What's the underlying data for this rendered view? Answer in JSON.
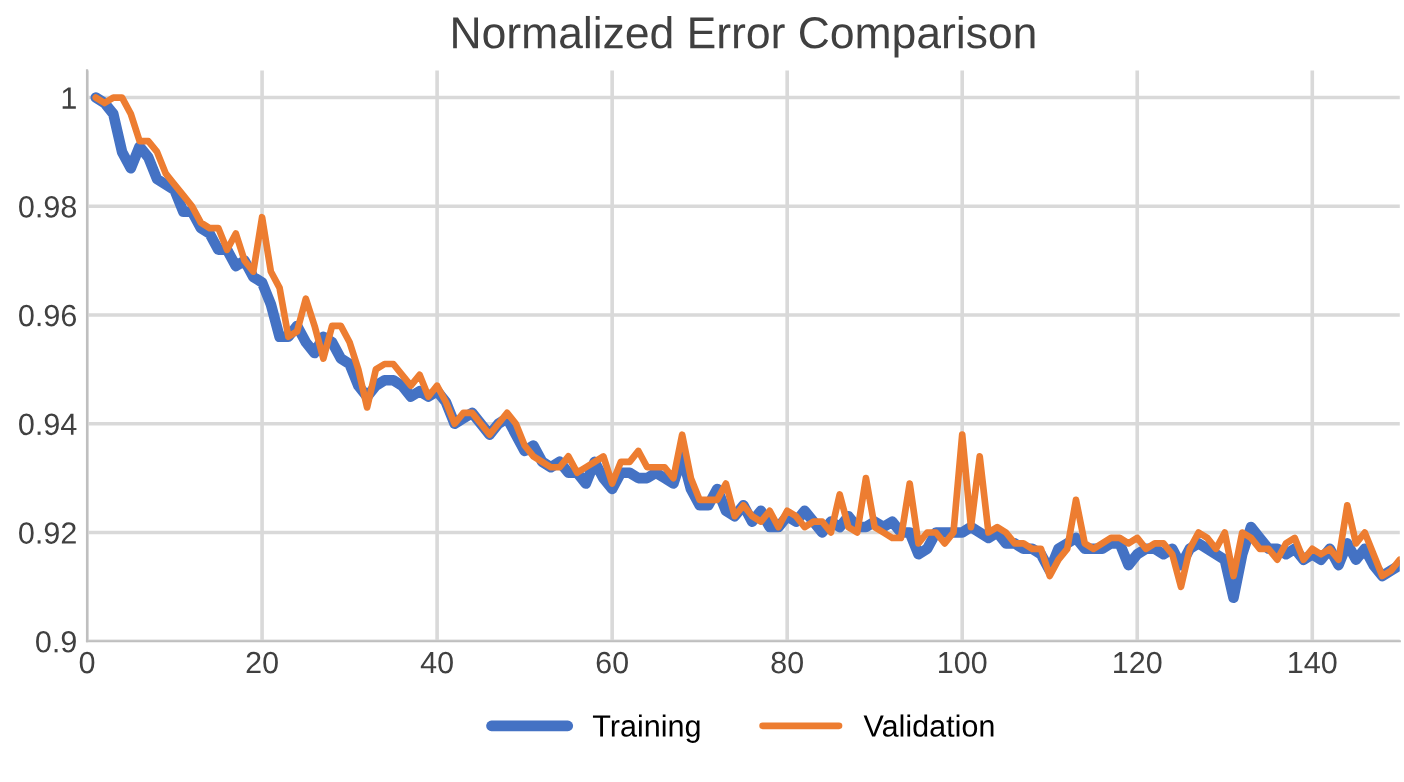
{
  "chart_data": {
    "type": "line",
    "title": "Normalized Error Comparison",
    "x": [
      1,
      2,
      3,
      4,
      5,
      6,
      7,
      8,
      9,
      10,
      11,
      12,
      13,
      14,
      15,
      16,
      17,
      18,
      19,
      20,
      21,
      22,
      23,
      24,
      25,
      26,
      27,
      28,
      29,
      30,
      31,
      32,
      33,
      34,
      35,
      36,
      37,
      38,
      39,
      40,
      41,
      42,
      43,
      44,
      45,
      46,
      47,
      48,
      49,
      50,
      51,
      52,
      53,
      54,
      55,
      56,
      57,
      58,
      59,
      60,
      61,
      62,
      63,
      64,
      65,
      66,
      67,
      68,
      69,
      70,
      71,
      72,
      73,
      74,
      75,
      76,
      77,
      78,
      79,
      80,
      81,
      82,
      83,
      84,
      85,
      86,
      87,
      88,
      89,
      90,
      91,
      92,
      93,
      94,
      95,
      96,
      97,
      98,
      99,
      100,
      101,
      102,
      103,
      104,
      105,
      106,
      107,
      108,
      109,
      110,
      111,
      112,
      113,
      114,
      115,
      116,
      117,
      118,
      119,
      120,
      121,
      122,
      123,
      124,
      125,
      126,
      127,
      128,
      129,
      130,
      131,
      132,
      133,
      134,
      135,
      136,
      137,
      138,
      139,
      140,
      141,
      142,
      143,
      144,
      145,
      146,
      147,
      148,
      149,
      150
    ],
    "series": [
      {
        "name": "Training",
        "color": "#4472c4",
        "values": [
          1.0,
          0.999,
          0.997,
          0.99,
          0.987,
          0.991,
          0.989,
          0.985,
          0.984,
          0.983,
          0.979,
          0.979,
          0.976,
          0.975,
          0.972,
          0.972,
          0.969,
          0.97,
          0.967,
          0.966,
          0.962,
          0.956,
          0.956,
          0.958,
          0.955,
          0.953,
          0.956,
          0.955,
          0.952,
          0.951,
          0.947,
          0.945,
          0.947,
          0.948,
          0.948,
          0.947,
          0.945,
          0.946,
          0.945,
          0.946,
          0.944,
          0.94,
          0.941,
          0.942,
          0.94,
          0.938,
          0.94,
          0.941,
          0.938,
          0.935,
          0.936,
          0.933,
          0.932,
          0.933,
          0.931,
          0.931,
          0.929,
          0.933,
          0.93,
          0.928,
          0.931,
          0.931,
          0.93,
          0.93,
          0.931,
          0.93,
          0.929,
          0.934,
          0.928,
          0.925,
          0.925,
          0.928,
          0.924,
          0.923,
          0.925,
          0.922,
          0.924,
          0.921,
          0.921,
          0.923,
          0.922,
          0.924,
          0.922,
          0.92,
          0.922,
          0.921,
          0.923,
          0.921,
          0.921,
          0.922,
          0.921,
          0.922,
          0.92,
          0.92,
          0.916,
          0.917,
          0.92,
          0.92,
          0.92,
          0.92,
          0.921,
          0.92,
          0.919,
          0.92,
          0.918,
          0.918,
          0.917,
          0.917,
          0.916,
          0.913,
          0.917,
          0.918,
          0.919,
          0.917,
          0.917,
          0.917,
          0.918,
          0.918,
          0.914,
          0.916,
          0.917,
          0.917,
          0.916,
          0.917,
          0.914,
          0.917,
          0.918,
          0.917,
          0.916,
          0.915,
          0.908,
          0.916,
          0.921,
          0.919,
          0.917,
          0.917,
          0.916,
          0.917,
          0.915,
          0.916,
          0.915,
          0.917,
          0.914,
          0.918,
          0.915,
          0.917,
          0.914,
          0.912,
          0.913,
          0.914
        ]
      },
      {
        "name": "Validation",
        "color": "#ed7d31",
        "values": [
          1.0,
          0.999,
          1.0,
          1.0,
          0.997,
          0.992,
          0.992,
          0.99,
          0.986,
          0.984,
          0.982,
          0.98,
          0.977,
          0.976,
          0.976,
          0.972,
          0.975,
          0.97,
          0.968,
          0.978,
          0.968,
          0.965,
          0.956,
          0.957,
          0.963,
          0.958,
          0.952,
          0.958,
          0.958,
          0.955,
          0.95,
          0.943,
          0.95,
          0.951,
          0.951,
          0.949,
          0.947,
          0.949,
          0.945,
          0.947,
          0.944,
          0.94,
          0.942,
          0.942,
          0.94,
          0.938,
          0.94,
          0.942,
          0.94,
          0.936,
          0.934,
          0.933,
          0.932,
          0.932,
          0.934,
          0.931,
          0.932,
          0.933,
          0.934,
          0.929,
          0.933,
          0.933,
          0.935,
          0.932,
          0.932,
          0.932,
          0.93,
          0.938,
          0.93,
          0.926,
          0.926,
          0.926,
          0.929,
          0.923,
          0.925,
          0.923,
          0.922,
          0.924,
          0.921,
          0.924,
          0.923,
          0.921,
          0.922,
          0.922,
          0.92,
          0.927,
          0.921,
          0.92,
          0.93,
          0.921,
          0.92,
          0.919,
          0.919,
          0.929,
          0.918,
          0.92,
          0.92,
          0.918,
          0.92,
          0.938,
          0.921,
          0.934,
          0.92,
          0.921,
          0.92,
          0.918,
          0.918,
          0.917,
          0.917,
          0.912,
          0.915,
          0.917,
          0.926,
          0.918,
          0.917,
          0.918,
          0.919,
          0.919,
          0.918,
          0.919,
          0.917,
          0.918,
          0.918,
          0.916,
          0.91,
          0.917,
          0.92,
          0.919,
          0.917,
          0.92,
          0.912,
          0.92,
          0.919,
          0.917,
          0.917,
          0.915,
          0.918,
          0.919,
          0.915,
          0.917,
          0.916,
          0.917,
          0.915,
          0.925,
          0.918,
          0.92,
          0.916,
          0.912,
          0.913,
          0.915
        ]
      }
    ],
    "xlim": [
      0,
      150
    ],
    "xticks": [
      0,
      20,
      40,
      60,
      80,
      100,
      120,
      140
    ],
    "ylim": [
      0.9,
      1.005
    ],
    "yticks": [
      0.9,
      0.92,
      0.94,
      0.96,
      0.98,
      1
    ],
    "grid": true,
    "legend": "bottom",
    "marker": "none",
    "line_style": "solid"
  }
}
